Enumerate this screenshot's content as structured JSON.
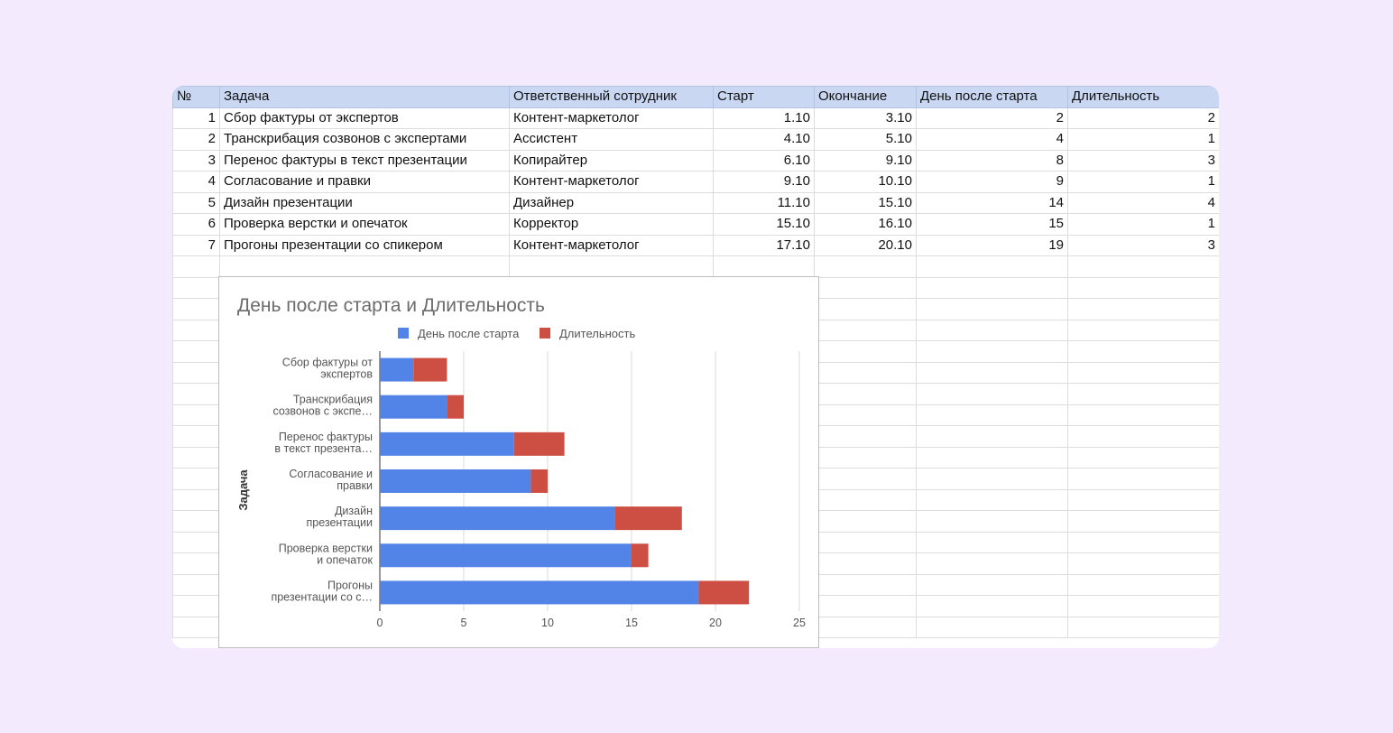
{
  "table": {
    "headers": [
      "№",
      "Задача",
      "Ответственный сотрудник",
      "Старт",
      "Окончание",
      "День после старта",
      "Длительность"
    ],
    "rows": [
      [
        "1",
        "Сбор фактуры от экспертов",
        "Контент-маркетолог",
        "1.10",
        "3.10",
        "2",
        "2"
      ],
      [
        "2",
        "Транскрибация созвонов с экспертами",
        "Ассистент",
        "4.10",
        "5.10",
        "4",
        "1"
      ],
      [
        "3",
        "Перенос фактуры в текст презентации",
        "Копирайтер",
        "6.10",
        "9.10",
        "8",
        "3"
      ],
      [
        "4",
        "Согласование и правки",
        "Контент-маркетолог",
        "9.10",
        "10.10",
        "9",
        "1"
      ],
      [
        "5",
        "Дизайн презентации",
        "Дизайнер",
        "11.10",
        "15.10",
        "14",
        "4"
      ],
      [
        "6",
        "Проверка верстки и опечаток",
        "Корректор",
        "15.10",
        "16.10",
        "15",
        "1"
      ],
      [
        "7",
        "Прогоны презентации со спикером",
        "Контент-маркетолог",
        "17.10",
        "20.10",
        "19",
        "3"
      ]
    ]
  },
  "chart_data": {
    "type": "bar",
    "orientation": "horizontal",
    "stacked": true,
    "title": "День после старта и Длительность",
    "xlabel": "",
    "ylabel": "Задача",
    "xlim": [
      0,
      25
    ],
    "xticks": [
      "0",
      "5",
      "10",
      "15",
      "20",
      "25"
    ],
    "grid": true,
    "legend_position": "top",
    "categories": [
      [
        "Сбор фактуры от",
        "экспертов"
      ],
      [
        "Транскрибация",
        "созвонов с экспе…"
      ],
      [
        "Перенос фактуры",
        "в текст презента…"
      ],
      [
        "Согласование и",
        "правки"
      ],
      [
        "Дизайн",
        "презентации"
      ],
      [
        "Проверка верстки",
        "и опечаток"
      ],
      [
        "Прогоны",
        "презентации со с…"
      ]
    ],
    "series": [
      {
        "name": "День после старта",
        "color": "#5284e8",
        "values": [
          2,
          4,
          8,
          9,
          14,
          15,
          19
        ]
      },
      {
        "name": "Длительность",
        "color": "#cd4e42",
        "values": [
          2,
          1,
          3,
          1,
          4,
          1,
          3
        ]
      }
    ]
  }
}
